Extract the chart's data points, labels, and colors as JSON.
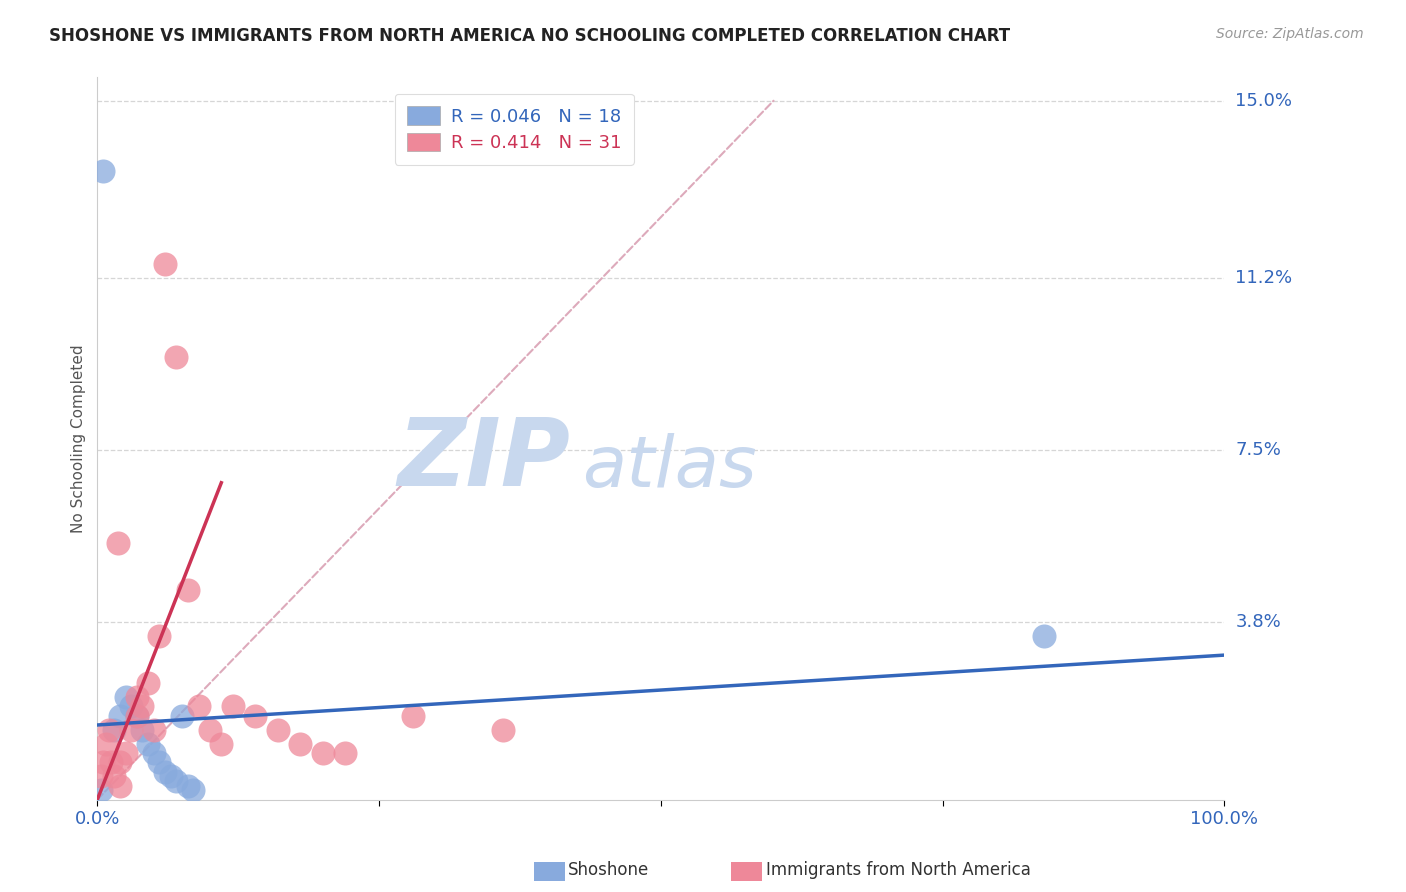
{
  "title": "SHOSHONE VS IMMIGRANTS FROM NORTH AMERICA NO SCHOOLING COMPLETED CORRELATION CHART",
  "source": "Source: ZipAtlas.com",
  "ylabel": "No Schooling Completed",
  "xlim": [
    0,
    100
  ],
  "ylim": [
    0,
    15.5
  ],
  "ytick_vals": [
    3.8,
    7.5,
    11.2,
    15.0
  ],
  "ytick_labels": [
    "3.8%",
    "7.5%",
    "11.2%",
    "15.0%"
  ],
  "blue_R": 0.046,
  "blue_N": 18,
  "pink_R": 0.414,
  "pink_N": 31,
  "blue_color": "#88AADD",
  "pink_color": "#EE8899",
  "blue_line_color": "#3366BB",
  "pink_line_color": "#CC3355",
  "diag_color": "#DDAABB",
  "grid_color": "#CCCCCC",
  "watermark_zip": "ZIP",
  "watermark_atlas": "atlas",
  "watermark_color": "#C8D8EE",
  "blue_scatter_x": [
    0.5,
    1.5,
    2.0,
    2.5,
    3.0,
    3.5,
    4.0,
    4.5,
    5.0,
    5.5,
    6.0,
    6.5,
    7.0,
    7.5,
    8.0,
    8.5,
    84.0,
    0.3
  ],
  "blue_scatter_y": [
    13.5,
    1.5,
    1.8,
    2.2,
    2.0,
    1.8,
    1.5,
    1.2,
    1.0,
    0.8,
    0.6,
    0.5,
    0.4,
    1.8,
    0.3,
    0.2,
    3.5,
    0.2
  ],
  "pink_scatter_x": [
    0.3,
    0.5,
    0.8,
    1.0,
    1.2,
    1.5,
    2.0,
    2.0,
    2.5,
    3.0,
    3.5,
    3.5,
    4.0,
    4.5,
    5.0,
    5.5,
    6.0,
    7.0,
    8.0,
    9.0,
    10.0,
    11.0,
    14.0,
    16.0,
    18.0,
    22.0,
    28.0,
    36.0,
    20.0,
    12.0,
    1.8
  ],
  "pink_scatter_y": [
    0.5,
    0.8,
    1.2,
    1.5,
    0.8,
    0.5,
    0.3,
    0.8,
    1.0,
    1.5,
    1.8,
    2.2,
    2.0,
    2.5,
    1.5,
    3.5,
    11.5,
    9.5,
    4.5,
    2.0,
    1.5,
    1.2,
    1.8,
    1.5,
    1.2,
    1.0,
    1.8,
    1.5,
    1.0,
    2.0,
    5.5
  ],
  "blue_line_x": [
    0,
    100
  ],
  "blue_line_y": [
    1.6,
    3.1
  ],
  "pink_line_x": [
    0,
    11
  ],
  "pink_line_y": [
    0.0,
    6.8
  ]
}
